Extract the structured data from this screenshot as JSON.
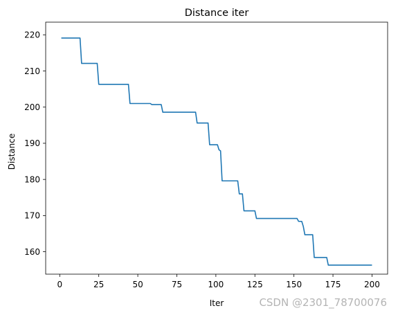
{
  "chart_data": {
    "type": "line",
    "title": "Distance iter",
    "xlabel": "Iter",
    "ylabel": "Distance",
    "xlim": [
      -9,
      210
    ],
    "ylim": [
      153.8,
      223.5
    ],
    "xticks": [
      0,
      25,
      50,
      75,
      100,
      125,
      150,
      175,
      200
    ],
    "yticks": [
      160,
      170,
      180,
      190,
      200,
      210,
      220
    ],
    "grid": false,
    "line_color": "#1f77b4",
    "series": [
      {
        "x": [
          1,
          13,
          14,
          24,
          25,
          44,
          45,
          58,
          59,
          65,
          66,
          87,
          88,
          95,
          96,
          101,
          102,
          103,
          104,
          114,
          115,
          117,
          118,
          122,
          123,
          125,
          126,
          152,
          153,
          155,
          156,
          157,
          158,
          162,
          163,
          171,
          172,
          200
        ],
        "y": [
          219.1,
          219.1,
          212.1,
          212.1,
          206.3,
          206.3,
          201.0,
          201.0,
          200.7,
          200.7,
          198.6,
          198.6,
          195.6,
          195.6,
          189.6,
          189.6,
          188.2,
          187.9,
          179.6,
          179.6,
          176.0,
          176.0,
          171.3,
          171.3,
          171.3,
          171.3,
          169.2,
          169.2,
          168.4,
          168.4,
          167.0,
          164.7,
          164.7,
          164.7,
          158.4,
          158.4,
          156.3,
          156.3
        ]
      }
    ]
  },
  "watermark": "CSDN @2301_78700076"
}
